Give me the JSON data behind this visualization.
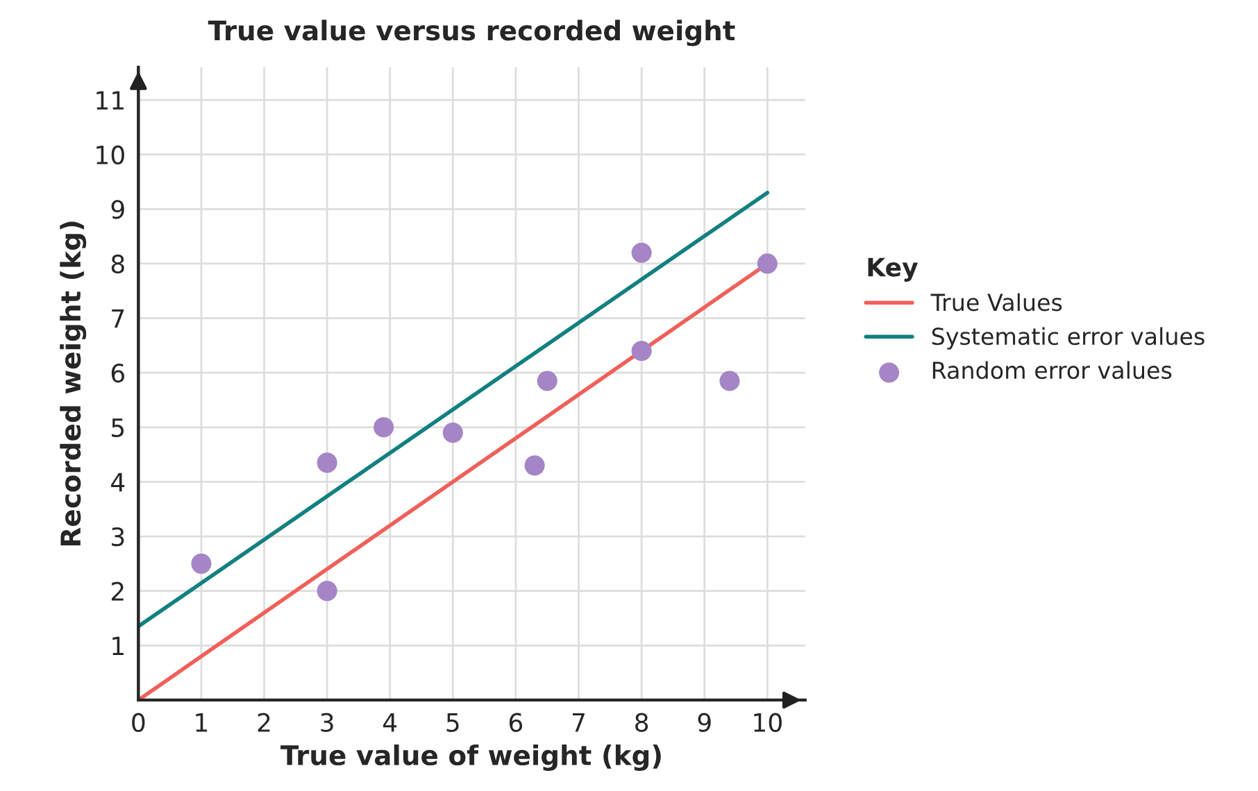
{
  "chart_data": {
    "type": "scatter",
    "title": "True value versus recorded weight",
    "xlabel": "True value of weight (kg)",
    "ylabel": "Recorded weight (kg)",
    "legend_title": "Key",
    "series": [
      {
        "name": "True Values",
        "type": "line",
        "color": "#f0605a",
        "x": [
          0,
          10
        ],
        "values": [
          0,
          8
        ]
      },
      {
        "name": "Systematic error values",
        "type": "line",
        "color": "#138080",
        "x": [
          0,
          10
        ],
        "values": [
          1.35,
          9.3
        ]
      },
      {
        "name": "Random error values",
        "marker": "circle",
        "color": "#a585c5",
        "x": [
          1,
          3,
          3,
          3.9,
          5,
          6.3,
          6.5,
          8,
          8,
          9.4,
          10
        ],
        "values": [
          2.5,
          4.35,
          2,
          5,
          4.9,
          4.3,
          5.85,
          8.2,
          6.4,
          5.85,
          8
        ]
      }
    ],
    "xlim": [
      0,
      10.6
    ],
    "ylim": [
      0,
      11.6
    ],
    "xticks": [
      0,
      1,
      2,
      3,
      4,
      5,
      6,
      7,
      8,
      9,
      10
    ],
    "yticks": [
      1,
      2,
      3,
      4,
      5,
      6,
      7,
      8,
      9,
      10,
      11
    ],
    "grid": true,
    "legend": "right",
    "line_style": "solid"
  }
}
